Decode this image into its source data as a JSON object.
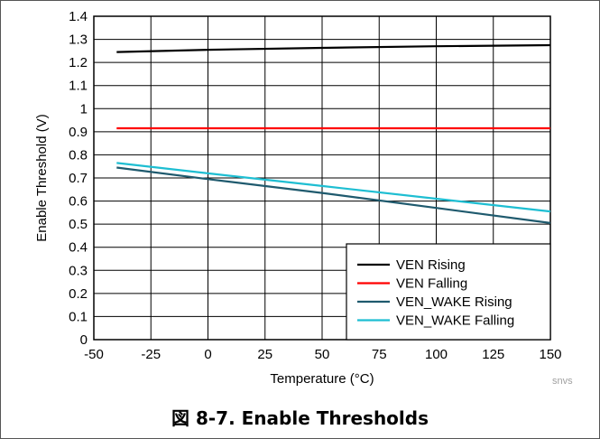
{
  "chart_data": {
    "type": "line",
    "xlabel": "Temperature (°C)",
    "ylabel": "Enable Threshold (V)",
    "xlim": [
      -50,
      150
    ],
    "ylim": [
      0,
      1.4
    ],
    "x_ticks": [
      "-50",
      "-25",
      "0",
      "25",
      "50",
      "75",
      "100",
      "125",
      "150"
    ],
    "y_ticks": [
      "0",
      "0.1",
      "0.2",
      "0.3",
      "0.4",
      "0.5",
      "0.6",
      "0.7",
      "0.8",
      "0.9",
      "1",
      "1.1",
      "1.2",
      "1.3",
      "1.4"
    ],
    "grid": true,
    "legend_position": "bottom-right",
    "series": [
      {
        "name": "VEN Rising",
        "color": "#000000",
        "x": [
          -40,
          0,
          50,
          100,
          150
        ],
        "y": [
          1.245,
          1.255,
          1.263,
          1.27,
          1.275
        ]
      },
      {
        "name": "VEN Falling",
        "color": "#ff0000",
        "x": [
          -40,
          0,
          50,
          100,
          150
        ],
        "y": [
          0.915,
          0.915,
          0.915,
          0.915,
          0.915
        ]
      },
      {
        "name": "VEN_WAKE Rising",
        "color": "#1f5a6e",
        "x": [
          -40,
          0,
          50,
          100,
          150
        ],
        "y": [
          0.745,
          0.695,
          0.635,
          0.57,
          0.505
        ]
      },
      {
        "name": "VEN_WAKE Falling",
        "color": "#1ebed2",
        "x": [
          -40,
          0,
          50,
          100,
          150
        ],
        "y": [
          0.765,
          0.72,
          0.665,
          0.61,
          0.555
        ]
      }
    ]
  },
  "watermark": "snvs",
  "caption": "図 8-7. Enable Thresholds"
}
